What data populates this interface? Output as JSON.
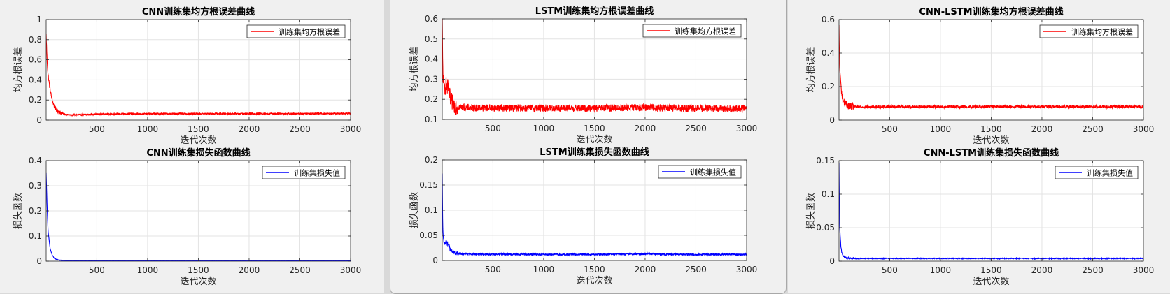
{
  "colors": {
    "rmse_line": "#ff0000",
    "loss_line": "#0000ff",
    "grid": "#e3e3e3",
    "axis": "#262626",
    "plot_bg": "#ffffff",
    "figure_bg": "#f0f0f0"
  },
  "chart_data": [
    {
      "type": "line",
      "model": "CNN",
      "title": "CNN训练集均方根误差曲线",
      "xlabel": "迭代次数",
      "ylabel": "均方根误差",
      "xlim": [
        1,
        3000
      ],
      "ylim": [
        0,
        1
      ],
      "xticks": [
        500,
        1000,
        1500,
        2000,
        2500,
        3000
      ],
      "yticks": [
        0,
        0.2,
        0.4,
        0.6,
        0.8,
        1
      ],
      "ytick_labels": [
        "0",
        "0.2",
        "0.4",
        "0.6",
        "0.8",
        "1"
      ],
      "grid": true,
      "legend_position": "top-right",
      "series": [
        {
          "name": "训练集均方根误差",
          "color": "#ff0000",
          "noise": 0.008,
          "x": [
            1,
            10,
            20,
            40,
            60,
            80,
            100,
            150,
            200,
            250,
            300,
            400,
            500,
            750,
            1000,
            1500,
            2000,
            2500,
            3000
          ],
          "y": [
            0.85,
            0.6,
            0.45,
            0.3,
            0.2,
            0.14,
            0.1,
            0.07,
            0.055,
            0.05,
            0.052,
            0.055,
            0.06,
            0.062,
            0.063,
            0.064,
            0.065,
            0.064,
            0.065
          ]
        }
      ]
    },
    {
      "type": "line",
      "model": "CNN",
      "title": "CNN训练集损失函数曲线",
      "xlabel": "迭代次数",
      "ylabel": "损失函数",
      "xlim": [
        1,
        3000
      ],
      "ylim": [
        0,
        0.4
      ],
      "xticks": [
        500,
        1000,
        1500,
        2000,
        2500,
        3000
      ],
      "yticks": [
        0,
        0.1,
        0.2,
        0.3,
        0.4
      ],
      "ytick_labels": [
        "0",
        "0.1",
        "0.2",
        "0.3",
        "0.4"
      ],
      "grid": true,
      "legend_position": "top-right",
      "series": [
        {
          "name": "训练集损失值",
          "color": "#0000ff",
          "noise": 0.0004,
          "x": [
            1,
            10,
            20,
            40,
            60,
            80,
            100,
            150,
            200,
            300,
            500,
            1000,
            2000,
            3000
          ],
          "y": [
            0.35,
            0.22,
            0.12,
            0.05,
            0.025,
            0.012,
            0.007,
            0.003,
            0.002,
            0.002,
            0.002,
            0.002,
            0.002,
            0.002
          ]
        }
      ]
    },
    {
      "type": "line",
      "model": "LSTM",
      "title": "LSTM训练集均方根误差曲线",
      "xlabel": "迭代次数",
      "ylabel": "均方根误差",
      "xlim": [
        1,
        3000
      ],
      "ylim": [
        0.1,
        0.6
      ],
      "xticks": [
        500,
        1000,
        1500,
        2000,
        2500,
        3000
      ],
      "yticks": [
        0.1,
        0.2,
        0.3,
        0.4,
        0.5,
        0.6
      ],
      "ytick_labels": [
        "0.1",
        "0.2",
        "0.3",
        "0.4",
        "0.5",
        "0.6"
      ],
      "grid": true,
      "legend_position": "top-right",
      "series": [
        {
          "name": "训练集均方根误差",
          "color": "#ff0000",
          "noise": 0.018,
          "x": [
            1,
            5,
            10,
            20,
            40,
            60,
            80,
            100,
            120,
            150,
            200,
            300,
            500,
            1000,
            1500,
            2000,
            2050,
            2100,
            2500,
            3000
          ],
          "y": [
            0.58,
            0.4,
            0.3,
            0.26,
            0.27,
            0.25,
            0.2,
            0.18,
            0.17,
            0.165,
            0.16,
            0.158,
            0.157,
            0.156,
            0.155,
            0.16,
            0.165,
            0.158,
            0.155,
            0.155
          ]
        }
      ]
    },
    {
      "type": "line",
      "model": "LSTM",
      "title": "LSTM训练集损失函数曲线",
      "xlabel": "迭代次数",
      "ylabel": "损失函数",
      "xlim": [
        1,
        3000
      ],
      "ylim": [
        0,
        0.2
      ],
      "xticks": [
        500,
        1000,
        1500,
        2000,
        2500,
        3000
      ],
      "yticks": [
        0,
        0.05,
        0.1,
        0.15,
        0.2
      ],
      "ytick_labels": [
        "0",
        "0.05",
        "0.1",
        "0.15",
        "0.2"
      ],
      "grid": true,
      "legend_position": "top-right",
      "series": [
        {
          "name": "训练集损失值",
          "color": "#0000ff",
          "noise": 0.0018,
          "x": [
            1,
            5,
            10,
            20,
            40,
            60,
            80,
            100,
            120,
            150,
            200,
            300,
            500,
            1000,
            1500,
            2000,
            2050,
            2100,
            2500,
            3000
          ],
          "y": [
            0.17,
            0.08,
            0.045,
            0.035,
            0.037,
            0.032,
            0.022,
            0.017,
            0.015,
            0.014,
            0.013,
            0.0125,
            0.0125,
            0.012,
            0.012,
            0.013,
            0.014,
            0.0125,
            0.012,
            0.012
          ]
        }
      ]
    },
    {
      "type": "line",
      "model": "CNN-LSTM",
      "title": "CNN-LSTM训练集均方根误差曲线",
      "xlabel": "迭代次数",
      "ylabel": "均方根误差",
      "xlim": [
        1,
        3000
      ],
      "ylim": [
        0,
        0.6
      ],
      "xticks": [
        500,
        1000,
        1500,
        2000,
        2500,
        3000
      ],
      "yticks": [
        0,
        0.2,
        0.4,
        0.6
      ],
      "ytick_labels": [
        "0",
        "0.2",
        "0.4",
        "0.6"
      ],
      "grid": true,
      "legend_position": "top-right",
      "series": [
        {
          "name": "训练集均方根误差",
          "color": "#ff0000",
          "noise": 0.009,
          "x": [
            1,
            5,
            10,
            20,
            30,
            40,
            60,
            80,
            100,
            150,
            200,
            500,
            1000,
            1500,
            2000,
            2500,
            3000
          ],
          "y": [
            0.55,
            0.4,
            0.3,
            0.2,
            0.15,
            0.12,
            0.1,
            0.09,
            0.085,
            0.08,
            0.078,
            0.08,
            0.08,
            0.08,
            0.08,
            0.08,
            0.08
          ]
        }
      ]
    },
    {
      "type": "line",
      "model": "CNN-LSTM",
      "title": "CNN-LSTM训练集损失函数曲线",
      "xlabel": "迭代次数",
      "ylabel": "损失函数",
      "xlim": [
        1,
        3000
      ],
      "ylim": [
        0,
        0.15
      ],
      "xticks": [
        500,
        1000,
        1500,
        2000,
        2500,
        3000
      ],
      "yticks": [
        0,
        0.05,
        0.1,
        0.15
      ],
      "ytick_labels": [
        "0",
        "0.05",
        "0.1",
        "0.15"
      ],
      "grid": true,
      "legend_position": "top-right",
      "series": [
        {
          "name": "训练集损失值",
          "color": "#0000ff",
          "noise": 0.0006,
          "x": [
            1,
            5,
            10,
            20,
            30,
            40,
            60,
            80,
            100,
            150,
            200,
            500,
            1000,
            2000,
            3000
          ],
          "y": [
            0.145,
            0.08,
            0.045,
            0.02,
            0.012,
            0.008,
            0.006,
            0.005,
            0.0045,
            0.004,
            0.004,
            0.004,
            0.004,
            0.004,
            0.004
          ]
        }
      ]
    }
  ]
}
